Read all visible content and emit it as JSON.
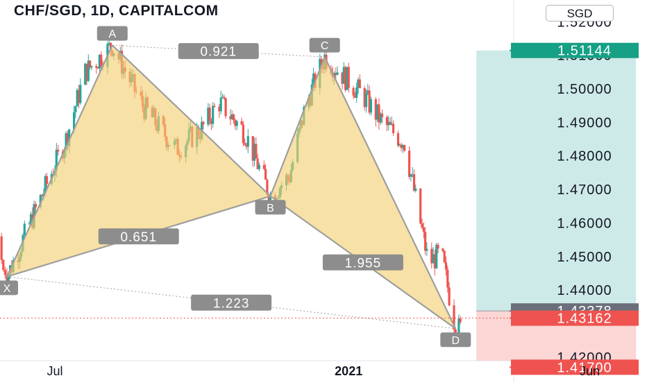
{
  "header": {
    "title": "CHF/SGD, 1D, CAPITALCOM",
    "currency": "SGD"
  },
  "colors": {
    "up": "#26a69a",
    "down": "#ef5350",
    "pattern_fill": "#f4cf70",
    "pattern_stroke": "#9e9e9e",
    "label_bg": "#8d8d8d",
    "profit_zone": "#cdeae8",
    "loss_zone": "#fbd6d4",
    "current_price": "#ef5350",
    "entry_price": "#6b6f7b",
    "target_price": "#16a085"
  },
  "chart_data": {
    "type": "candlestick",
    "title": "CHF/SGD, 1D, CAPITALCOM",
    "y_axis": {
      "unit": "SGD",
      "ticks": [
        "1.52000",
        "1.51000",
        "1.50000",
        "1.49000",
        "1.48000",
        "1.47000",
        "1.46000",
        "1.45000",
        "1.44000",
        "1.42000"
      ],
      "range": [
        1.4148,
        1.524
      ]
    },
    "x_axis": {
      "ticks": [
        "Jul",
        "2021",
        "Jun"
      ]
    },
    "harmonic_pattern": {
      "points": [
        {
          "name": "X",
          "date": "2020-06-01",
          "price": 1.444
        },
        {
          "name": "A",
          "date": "2020-08-06",
          "price": 1.513
        },
        {
          "name": "B",
          "date": "2020-11-13",
          "price": 1.468
        },
        {
          "name": "C",
          "date": "2020-12-17",
          "price": 1.5095
        },
        {
          "name": "D",
          "date": "2021-03-09",
          "price": 1.4285
        }
      ],
      "ratios": [
        "0.921",
        "0.651",
        "1.955",
        "1.223"
      ]
    },
    "position": {
      "target_price": "1.51144",
      "entry_price": "1.43378",
      "stop_price": "1.41700",
      "start_date": "2021-03-22",
      "end_date": "2021-06-30"
    },
    "current_price": "1.43162"
  }
}
